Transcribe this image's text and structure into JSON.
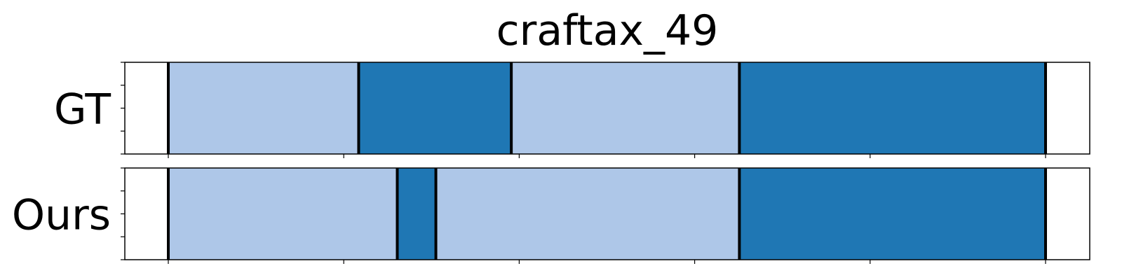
{
  "chart_data": {
    "type": "segmentation-timeline",
    "title": "craftax_49",
    "colors": {
      "light": "#aec7e8",
      "dark": "#1f77b4"
    },
    "xlim": [
      0,
      1
    ],
    "rows": [
      {
        "label": "GT",
        "segments": [
          {
            "start": 0.0,
            "end": 0.217,
            "class": "light"
          },
          {
            "start": 0.217,
            "end": 0.391,
            "class": "dark"
          },
          {
            "start": 0.391,
            "end": 0.651,
            "class": "light"
          },
          {
            "start": 0.651,
            "end": 1.0,
            "class": "dark"
          }
        ]
      },
      {
        "label": "Ours",
        "segments": [
          {
            "start": 0.0,
            "end": 0.261,
            "class": "light"
          },
          {
            "start": 0.261,
            "end": 0.305,
            "class": "dark"
          },
          {
            "start": 0.305,
            "end": 0.651,
            "class": "light"
          },
          {
            "start": 0.651,
            "end": 1.0,
            "class": "dark"
          }
        ]
      }
    ],
    "x_ticks": [
      0,
      0.2,
      0.4,
      0.6,
      0.8,
      1.0
    ],
    "y_ticks_per_row": 5,
    "grid": false,
    "legend": "none"
  }
}
